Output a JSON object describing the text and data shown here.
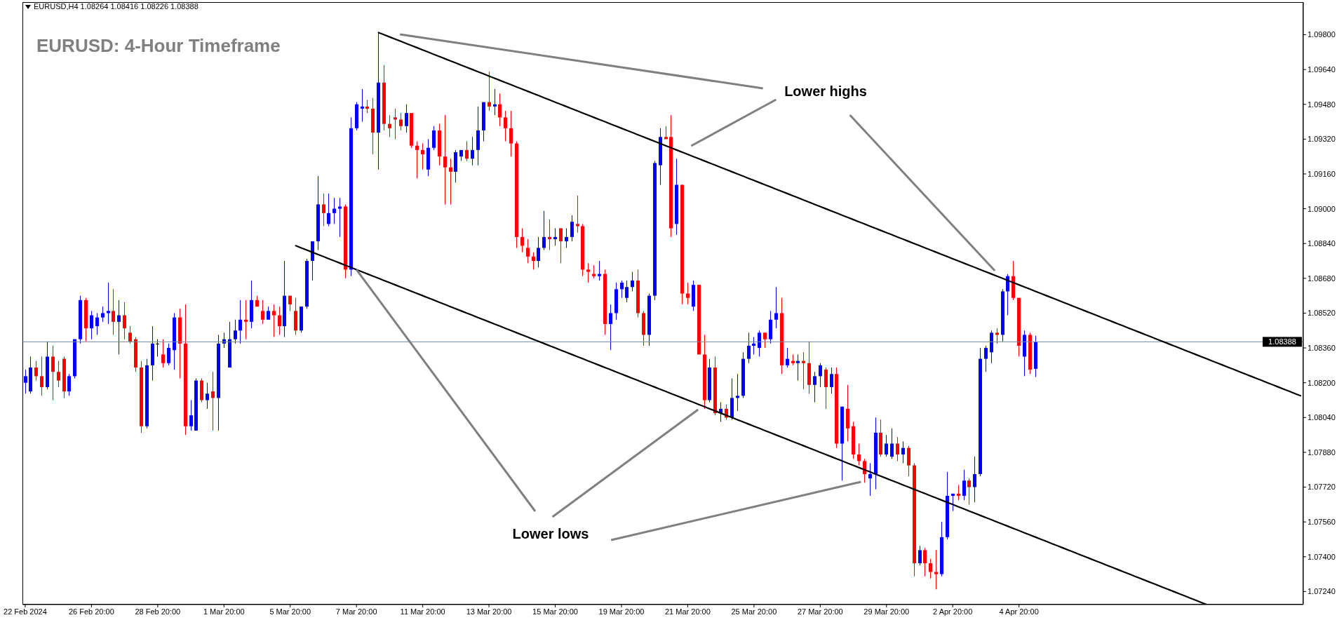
{
  "chart_data": {
    "type": "candlestick",
    "title": "EURUSD: 4-Hour Timeframe",
    "annotations": [
      "EURUSD,H4 1.08264 1.08416 1.08226 1.08388",
      "Lower highs",
      {
        "text": "Lower lows",
        "x": "7 Mar 20:00",
        "y": 1.0872
      }
    ],
    "categories": [
      "22 Feb 2024",
      null,
      null,
      null,
      null,
      null,
      null,
      null,
      null,
      null,
      null,
      null,
      "26 Feb 20:00",
      null,
      null,
      null,
      null,
      null,
      null,
      null,
      null,
      null,
      null,
      null,
      "28 Feb 20:00",
      null,
      null,
      null,
      null,
      null,
      null,
      null,
      null,
      null,
      null,
      null,
      "1 Mar 20:00",
      null,
      null,
      null,
      null,
      null,
      null,
      null,
      null,
      null,
      null,
      null,
      "5 Mar 20:00",
      null,
      null,
      null,
      null,
      null,
      null,
      null,
      null,
      null,
      null,
      null,
      "7 Mar 20:00",
      null,
      null,
      null,
      null,
      null,
      null,
      null,
      null,
      null,
      null,
      null,
      "11 Mar 20:00",
      null,
      null,
      null,
      null,
      null,
      null,
      null,
      null,
      null,
      null,
      null,
      "13 Mar 20:00",
      null,
      null,
      null,
      null,
      null,
      null,
      null,
      null,
      null,
      null,
      null,
      "15 Mar 20:00",
      null,
      null,
      null,
      null,
      null,
      null,
      null,
      null,
      null,
      null,
      null,
      "19 Mar 20:00",
      null,
      null,
      null,
      null,
      null,
      null,
      null,
      null,
      null,
      null,
      null,
      "21 Mar 20:00",
      null,
      null,
      null,
      null,
      null,
      null,
      null,
      null,
      null,
      null,
      null,
      "25 Mar 20:00",
      null,
      null,
      null,
      null,
      null,
      null,
      null,
      null,
      null,
      null,
      null,
      "27 Mar 20:00",
      null,
      null,
      null,
      null,
      null,
      null,
      null,
      null,
      null,
      null,
      null,
      "29 Mar 20:00",
      null,
      null,
      null,
      null,
      null,
      null,
      null,
      null,
      null,
      null,
      null,
      "2 Apr 20:00",
      null,
      null,
      null,
      null,
      null,
      null,
      null,
      null,
      null,
      null,
      null,
      "4 Apr 20:00",
      null,
      null,
      null,
      null,
      null,
      null,
      null,
      null,
      null,
      null,
      null,
      null,
      null,
      null,
      null,
      null,
      null,
      null,
      null,
      null,
      null,
      null,
      null,
      null,
      null,
      null,
      null,
      null,
      null,
      null,
      null,
      null,
      null,
      null,
      null,
      null,
      null,
      null,
      null,
      null,
      null,
      null,
      null,
      null,
      null,
      null,
      null,
      null,
      null,
      null,
      null
    ],
    "ohlc": [
      [
        1.082,
        1.0826,
        1.0815,
        1.0823
      ],
      [
        1.0816,
        1.0832,
        1.0815,
        1.0827
      ],
      [
        1.0827,
        1.083,
        1.0821,
        1.0823
      ],
      [
        1.0823,
        1.0832,
        1.0814,
        1.0818
      ],
      [
        1.0818,
        1.0839,
        1.0817,
        1.0832
      ],
      [
        1.0832,
        1.0837,
        1.0812,
        1.0825
      ],
      [
        1.0825,
        1.083,
        1.0818,
        1.0821
      ],
      [
        1.0831,
        1.0832,
        1.0813,
        1.0816
      ],
      [
        1.0816,
        1.0824,
        1.0814,
        1.0823
      ],
      [
        1.0823,
        1.084,
        1.0822,
        1.084
      ],
      [
        1.084,
        1.086,
        1.0838,
        1.0858
      ],
      [
        1.0858,
        1.0859,
        1.0839,
        1.0845
      ],
      [
        1.0845,
        1.0853,
        1.084,
        1.0851
      ],
      [
        1.0846,
        1.0852,
        1.0842,
        1.085
      ],
      [
        1.085,
        1.0855,
        1.0848,
        1.0852
      ],
      [
        1.0852,
        1.0866,
        1.0847,
        1.0853
      ],
      [
        1.0853,
        1.0863,
        1.0842,
        1.0848
      ],
      [
        1.0848,
        1.0858,
        1.0833,
        1.0851
      ],
      [
        1.0851,
        1.0857,
        1.084,
        1.0845
      ],
      [
        1.0843,
        1.0846,
        1.0838,
        1.0839
      ],
      [
        1.084,
        1.0841,
        1.0825,
        1.0827
      ],
      [
        1.0827,
        1.083,
        1.0797,
        1.08
      ],
      [
        1.08,
        1.0831,
        1.0799,
        1.0828
      ],
      [
        1.0828,
        1.0846,
        1.0821,
        1.0838
      ],
      [
        1.0838,
        1.084,
        1.0832,
        1.0838
      ],
      [
        1.0833,
        1.084,
        1.0827,
        1.0829
      ],
      [
        1.0829,
        1.0838,
        1.0828,
        1.0836
      ],
      [
        1.0835,
        1.0852,
        1.0826,
        1.085
      ],
      [
        1.085,
        1.0854,
        1.0822,
        1.0838
      ],
      [
        1.0838,
        1.0856,
        1.0796,
        1.08
      ],
      [
        1.08,
        1.0812,
        1.0798,
        1.0805
      ],
      [
        1.0798,
        1.0822,
        1.0798,
        1.0821
      ],
      [
        1.0821,
        1.0822,
        1.0811,
        1.0812
      ],
      [
        1.0812,
        1.082,
        1.0808,
        1.0815
      ],
      [
        1.0816,
        1.0825,
        1.0798,
        1.0813
      ],
      [
        1.0813,
        1.0842,
        1.0798,
        1.0838
      ],
      [
        1.0838,
        1.0843,
        1.0836,
        1.084
      ],
      [
        1.0827,
        1.0848,
        1.0827,
        1.084
      ],
      [
        1.084,
        1.0849,
        1.0838,
        1.0844
      ],
      [
        1.0844,
        1.0858,
        1.0838,
        1.0849
      ],
      [
        1.0849,
        1.0858,
        1.084,
        1.0848
      ],
      [
        1.0848,
        1.0867,
        1.0845,
        1.0858
      ],
      [
        1.0858,
        1.086,
        1.0855,
        1.0855
      ],
      [
        1.0853,
        1.0858,
        1.0847,
        1.0849
      ],
      [
        1.0849,
        1.0855,
        1.0849,
        1.0853
      ],
      [
        1.0853,
        1.0856,
        1.0841,
        1.0851
      ],
      [
        1.0851,
        1.0855,
        1.0842,
        1.0846
      ],
      [
        1.0846,
        1.0876,
        1.0841,
        1.086
      ],
      [
        1.086,
        1.086,
        1.0853,
        1.0856
      ],
      [
        1.0853,
        1.0859,
        1.0842,
        1.0844
      ],
      [
        1.0844,
        1.0855,
        1.0843,
        1.0855
      ],
      [
        1.0855,
        1.0877,
        1.0854,
        1.0876
      ],
      [
        1.0876,
        1.0885,
        1.0867,
        1.0885
      ],
      [
        1.0885,
        1.0915,
        1.0881,
        1.0902
      ],
      [
        1.0902,
        1.0907,
        1.0892,
        1.0898
      ],
      [
        1.0893,
        1.0907,
        1.0892,
        1.0898
      ],
      [
        1.0898,
        1.0905,
        1.0893,
        1.09
      ],
      [
        1.09,
        1.0905,
        1.0887,
        1.0901
      ],
      [
        1.0901,
        1.0902,
        1.0868,
        1.0872
      ],
      [
        1.0872,
        1.0942,
        1.0869,
        1.0937
      ],
      [
        1.0937,
        1.0949,
        1.0936,
        1.0948
      ],
      [
        1.0946,
        1.0955,
        1.094,
        1.0947
      ],
      [
        1.0947,
        1.095,
        1.0944,
        1.0946
      ],
      [
        1.0946,
        1.0951,
        1.0925,
        1.0935
      ],
      [
        1.0935,
        1.0981,
        1.0918,
        1.0958
      ],
      [
        1.0958,
        1.0966,
        1.0936,
        1.0939
      ],
      [
        1.0939,
        1.0943,
        1.0933,
        1.0937
      ],
      [
        1.0942,
        1.0946,
        1.0932,
        1.0941
      ],
      [
        1.0941,
        1.0944,
        1.0936,
        1.0938
      ],
      [
        1.0938,
        1.0948,
        1.0935,
        1.0944
      ],
      [
        1.0944,
        1.0944,
        1.0928,
        1.0929
      ],
      [
        1.0929,
        1.0931,
        1.0914,
        1.0927
      ],
      [
        1.0927,
        1.093,
        1.0918,
        1.0925
      ],
      [
        1.0918,
        1.0932,
        1.0915,
        1.0928
      ],
      [
        1.0928,
        1.0938,
        1.0927,
        1.0936
      ],
      [
        1.0936,
        1.0939,
        1.092,
        1.0924
      ],
      [
        1.0924,
        1.0943,
        1.0902,
        1.0919
      ],
      [
        1.0919,
        1.0923,
        1.0902,
        1.0917
      ],
      [
        1.0917,
        1.0927,
        1.0912,
        1.0926
      ],
      [
        1.0924,
        1.0927,
        1.0922,
        1.0927
      ],
      [
        1.0927,
        1.0931,
        1.0922,
        1.0923
      ],
      [
        1.0923,
        1.0933,
        1.092,
        1.0927
      ],
      [
        1.0927,
        1.0947,
        1.092,
        1.0936
      ],
      [
        1.0936,
        1.0949,
        1.0931,
        1.0949
      ],
      [
        1.0949,
        1.0963,
        1.0945,
        1.0947
      ],
      [
        1.0947,
        1.0955,
        1.0943,
        1.0948
      ],
      [
        1.0948,
        1.0953,
        1.0938,
        1.0942
      ],
      [
        1.0942,
        1.0945,
        1.0931,
        1.0937
      ],
      [
        1.0937,
        1.0945,
        1.0924,
        1.093
      ],
      [
        1.093,
        1.0931,
        1.0882,
        1.0887
      ],
      [
        1.0887,
        1.0891,
        1.088,
        1.0883
      ],
      [
        1.0882,
        1.0886,
        1.0875,
        1.0878
      ],
      [
        1.0878,
        1.088,
        1.0872,
        1.0876
      ],
      [
        1.0876,
        1.0887,
        1.0873,
        1.0882
      ],
      [
        1.0882,
        1.0899,
        1.0881,
        1.0887
      ],
      [
        1.0887,
        1.0895,
        1.0881,
        1.0886
      ],
      [
        1.0886,
        1.0891,
        1.0883,
        1.0887
      ],
      [
        1.0891,
        1.0891,
        1.0875,
        1.0885
      ],
      [
        1.0885,
        1.0891,
        1.0882,
        1.0887
      ],
      [
        1.0887,
        1.0897,
        1.0885,
        1.0894
      ],
      [
        1.0893,
        1.0906,
        1.0889,
        1.0892
      ],
      [
        1.0892,
        1.0893,
        1.0869,
        1.0872
      ],
      [
        1.0872,
        1.0875,
        1.0866,
        1.0871
      ],
      [
        1.087,
        1.0874,
        1.0868,
        1.0869
      ],
      [
        1.0869,
        1.0876,
        1.0867,
        1.087
      ],
      [
        1.087,
        1.0872,
        1.0842,
        1.0847
      ],
      [
        1.0847,
        1.0856,
        1.0835,
        1.0852
      ],
      [
        1.0852,
        1.0866,
        1.0849,
        1.0863
      ],
      [
        1.0863,
        1.0867,
        1.0859,
        1.0866
      ],
      [
        1.0859,
        1.0867,
        1.0857,
        1.0864
      ],
      [
        1.0864,
        1.0871,
        1.0862,
        1.0867
      ],
      [
        1.0867,
        1.0872,
        1.085,
        1.0852
      ],
      [
        1.0852,
        1.0853,
        1.0837,
        1.0842
      ],
      [
        1.0842,
        1.0861,
        1.0837,
        1.086
      ],
      [
        1.086,
        1.0922,
        1.0858,
        1.0921
      ],
      [
        1.092,
        1.0937,
        1.0911,
        1.0933
      ],
      [
        1.0933,
        1.0938,
        1.0932,
        1.0932
      ],
      [
        1.0933,
        1.0943,
        1.0887,
        1.0891
      ],
      [
        1.0893,
        1.0923,
        1.0888,
        1.0911
      ],
      [
        1.0911,
        1.0911,
        1.0856,
        1.0861
      ],
      [
        1.0861,
        1.0866,
        1.0856,
        1.0859
      ],
      [
        1.0855,
        1.0867,
        1.0853,
        1.0865
      ],
      [
        1.0865,
        1.0865,
        1.0833,
        1.0833
      ],
      [
        1.0833,
        1.0842,
        1.0808,
        1.0812
      ],
      [
        1.0812,
        1.0831,
        1.0811,
        1.0827
      ],
      [
        1.0827,
        1.0832,
        1.0805,
        1.0806
      ],
      [
        1.0806,
        1.0811,
        1.0802,
        1.0808
      ],
      [
        1.0808,
        1.081,
        1.0803,
        1.0804
      ],
      [
        1.0804,
        1.0822,
        1.0803,
        1.0813
      ],
      [
        1.0813,
        1.0824,
        1.0807,
        1.0814
      ],
      [
        1.0814,
        1.0834,
        1.0813,
        1.0831
      ],
      [
        1.0831,
        1.0843,
        1.0829,
        1.0837
      ],
      [
        1.0837,
        1.0841,
        1.0833,
        1.0838
      ],
      [
        1.0836,
        1.0844,
        1.0832,
        1.0843
      ],
      [
        1.0843,
        1.0843,
        1.0836,
        1.084
      ],
      [
        1.084,
        1.0853,
        1.0838,
        1.0849
      ],
      [
        1.0849,
        1.0864,
        1.0845,
        1.0852
      ],
      [
        1.0852,
        1.0859,
        1.0824,
        1.0828
      ],
      [
        1.0828,
        1.0836,
        1.0827,
        1.0831
      ],
      [
        1.083,
        1.0833,
        1.0828,
        1.0829
      ],
      [
        1.0829,
        1.0833,
        1.0821,
        1.083
      ],
      [
        1.083,
        1.0834,
        1.0817,
        1.0829
      ],
      [
        1.0829,
        1.0839,
        1.0815,
        1.0819
      ],
      [
        1.0819,
        1.0825,
        1.0811,
        1.0823
      ],
      [
        1.0823,
        1.0829,
        1.0818,
        1.0828
      ],
      [
        1.0826,
        1.0827,
        1.0808,
        1.0818
      ],
      [
        1.0818,
        1.0827,
        1.0815,
        1.0824
      ],
      [
        1.0824,
        1.0827,
        1.079,
        1.0792
      ],
      [
        1.0792,
        1.0809,
        1.0775,
        1.0809
      ],
      [
        1.0808,
        1.0819,
        1.0793,
        1.0799
      ],
      [
        1.08,
        1.0802,
        1.0785,
        1.0787
      ],
      [
        1.0787,
        1.0792,
        1.0782,
        1.0784
      ],
      [
        1.0784,
        1.0785,
        1.0774,
        1.0778
      ],
      [
        1.0776,
        1.0783,
        1.0768,
        1.0778
      ],
      [
        1.0778,
        1.0804,
        1.0771,
        1.0797
      ],
      [
        1.0797,
        1.0803,
        1.0786,
        1.0787
      ],
      [
        1.0787,
        1.0796,
        1.0786,
        1.0792
      ],
      [
        1.0786,
        1.0799,
        1.0785,
        1.0792
      ],
      [
        1.0792,
        1.0795,
        1.0784,
        1.0787
      ],
      [
        1.0787,
        1.0793,
        1.0783,
        1.079
      ],
      [
        1.079,
        1.0791,
        1.0777,
        1.0782
      ],
      [
        1.0782,
        1.0783,
        1.0731,
        1.0737
      ],
      [
        1.0737,
        1.0745,
        1.0736,
        1.0743
      ],
      [
        1.0743,
        1.0744,
        1.0731,
        1.0737
      ],
      [
        1.0737,
        1.0739,
        1.073,
        1.0733
      ],
      [
        1.0733,
        1.0743,
        1.0725,
        1.0732
      ],
      [
        1.0732,
        1.0756,
        1.0731,
        1.0749
      ],
      [
        1.0749,
        1.0779,
        1.0748,
        1.0768
      ],
      [
        1.0768,
        1.0769,
        1.0761,
        1.0769
      ],
      [
        1.0769,
        1.0773,
        1.0766,
        1.0768
      ],
      [
        1.0768,
        1.078,
        1.0766,
        1.0775
      ],
      [
        1.0775,
        1.0776,
        1.0764,
        1.0772
      ],
      [
        1.0772,
        1.0786,
        1.0765,
        1.0778
      ],
      [
        1.0778,
        1.0836,
        1.0777,
        1.0831
      ],
      [
        1.0831,
        1.0837,
        1.0825,
        1.0836
      ],
      [
        1.0834,
        1.0844,
        1.0829,
        1.0843
      ],
      [
        1.0843,
        1.0845,
        1.0838,
        1.0842
      ],
      [
        1.0842,
        1.0863,
        1.0839,
        1.0862
      ],
      [
        1.0862,
        1.087,
        1.0851,
        1.0869
      ],
      [
        1.0869,
        1.0876,
        1.0858,
        1.0859
      ],
      [
        1.0859,
        1.0859,
        1.0832,
        1.0837
      ],
      [
        1.0832,
        1.0844,
        1.0823,
        1.0842
      ],
      [
        1.0842,
        1.0843,
        1.0824,
        1.0826
      ],
      [
        1.08264,
        1.08416,
        1.08226,
        1.08388
      ],
      null,
      null,
      null,
      null,
      null,
      null,
      null,
      null,
      null,
      null,
      null,
      null,
      null,
      null,
      null,
      null,
      null,
      null,
      null,
      null,
      null,
      null,
      null,
      null,
      null,
      null,
      null,
      null,
      null,
      null,
      null,
      null,
      null,
      null,
      null,
      null,
      null,
      null,
      null,
      null,
      null,
      null,
      null,
      null,
      null,
      null,
      null,
      null
    ],
    "colors": [
      "#0000ff",
      "#0000ff",
      "#ff0000",
      "#ff0000",
      "#0000ff",
      "#ff0000",
      "#ff0000",
      "#ff0000",
      "#0000ff",
      "#0000ff",
      "#0000ff",
      "#ff0000",
      "#0000ff",
      "#0000ff",
      "#0000ff",
      "#0000ff",
      "#ff0000",
      "#0000ff",
      "#ff0000",
      "#ff0000",
      "#ff0000",
      "#ff0000",
      "#0000ff",
      "#0000ff",
      "#000000",
      "#ff0000",
      "#0000ff",
      "#0000ff",
      "#ff0000",
      "#ff0000",
      "#0000ff",
      "#0000ff",
      "#ff0000",
      "#0000ff",
      "#ff0000",
      "#0000ff",
      "#0000ff",
      "#0000ff",
      "#0000ff",
      "#0000ff",
      "#ff0000",
      "#0000ff",
      "#ff0000",
      "#ff0000",
      "#0000ff",
      "#ff0000",
      "#ff0000",
      "#0000ff",
      "#ff0000",
      "#ff0000",
      "#0000ff",
      "#0000ff",
      "#0000ff",
      "#0000ff",
      "#ff0000",
      "#0000ff",
      "#0000ff",
      "#0000ff",
      "#ff0000",
      "#0000ff",
      "#0000ff",
      "#0000ff",
      "#ff0000",
      "#ff0000",
      "#0000ff",
      "#ff0000",
      "#ff0000",
      "#ff0000",
      "#ff0000",
      "#0000ff",
      "#ff0000",
      "#ff0000",
      "#ff0000",
      "#0000ff",
      "#0000ff",
      "#ff0000",
      "#ff0000",
      "#ff0000",
      "#0000ff",
      "#0000ff",
      "#ff0000",
      "#0000ff",
      "#0000ff",
      "#0000ff",
      "#ff0000",
      "#0000ff",
      "#ff0000",
      "#ff0000",
      "#ff0000",
      "#ff0000",
      "#ff0000",
      "#ff0000",
      "#ff0000",
      "#0000ff",
      "#0000ff",
      "#ff0000",
      "#0000ff",
      "#ff0000",
      "#0000ff",
      "#0000ff",
      "#ff0000",
      "#ff0000",
      "#ff0000",
      "#ff0000",
      "#0000ff",
      "#ff0000",
      "#0000ff",
      "#0000ff",
      "#0000ff",
      "#0000ff",
      "#0000ff",
      "#ff0000",
      "#ff0000",
      "#0000ff",
      "#0000ff",
      "#0000ff",
      "#ff0000",
      "#ff0000",
      "#0000ff",
      "#ff0000",
      "#ff0000",
      "#0000ff",
      "#ff0000",
      "#ff0000",
      "#0000ff",
      "#ff0000",
      "#0000ff",
      "#ff0000",
      "#0000ff",
      "#0000ff",
      "#0000ff",
      "#0000ff",
      "#0000ff",
      "#0000ff",
      "#ff0000",
      "#0000ff",
      "#0000ff",
      "#ff0000",
      "#0000ff",
      "#ff0000",
      "#0000ff",
      "#ff0000",
      "#ff0000",
      "#0000ff",
      "#0000ff",
      "#ff0000",
      "#0000ff",
      "#ff0000",
      "#0000ff",
      "#ff0000",
      "#ff0000",
      "#ff0000",
      "#ff0000",
      "#0000ff",
      "#0000ff",
      "#ff0000",
      "#0000ff",
      "#0000ff",
      "#ff0000",
      "#0000ff",
      "#ff0000",
      "#ff0000",
      "#0000ff",
      "#ff0000",
      "#ff0000",
      "#ff0000",
      "#0000ff",
      "#0000ff",
      "#0000ff",
      "#ff0000",
      "#0000ff",
      "#ff0000",
      "#0000ff",
      "#0000ff",
      "#0000ff",
      "#0000ff",
      "#ff0000",
      "#0000ff",
      "#0000ff",
      "#ff0000",
      "#ff0000",
      "#0000ff",
      "#ff0000",
      "#0000ff",
      null,
      null,
      null,
      null,
      null,
      null,
      null,
      null,
      null,
      null,
      null,
      null,
      null,
      null,
      null,
      null,
      null,
      null,
      null,
      null,
      null,
      null,
      null,
      null,
      null,
      null,
      null,
      null,
      null,
      null,
      null,
      null,
      null,
      null,
      null,
      null,
      null,
      null,
      null,
      null,
      null,
      null,
      null,
      null,
      null,
      null,
      null,
      null
    ],
    "series": [
      {
        "type": "line",
        "color": "#000000",
        "values": [
          null,
          null,
          null,
          null,
          null,
          null,
          null,
          null,
          null,
          null,
          null,
          null,
          null,
          null,
          null,
          null,
          null,
          null,
          null,
          null,
          null,
          null,
          null,
          null,
          null,
          null,
          null,
          null,
          null,
          null,
          null,
          null,
          null,
          null,
          null,
          null,
          null,
          null,
          null,
          null,
          null,
          null,
          null,
          null,
          null,
          null,
          null,
          null,
          null,
          null,
          null,
          null,
          null,
          null,
          null,
          null,
          null,
          null,
          null,
          null,
          null,
          null,
          null,
          null,
          1.0981,
          1.098,
          1.0979,
          1.0978,
          1.0977,
          1.0976,
          1.0975,
          1.0974,
          1.0973,
          1.0972,
          1.0971,
          1.097,
          1.0969,
          1.0968,
          1.0967,
          1.0966,
          1.0965,
          1.0964,
          1.0963,
          1.0962,
          1.0961,
          1.096,
          1.0959,
          1.0958,
          1.0957,
          1.0956,
          1.0955,
          1.0954,
          1.0953,
          1.0952,
          1.0951,
          1.095,
          1.0949,
          1.0948,
          1.0947,
          1.0946,
          1.0945,
          1.0944,
          1.0943,
          1.0942,
          1.0941,
          1.094,
          1.0939,
          1.0938,
          1.0937,
          1.0936,
          1.0935,
          1.0934,
          1.0933,
          1.0932,
          1.0931,
          1.093,
          1.0929,
          1.0928,
          1.0927,
          1.0926,
          1.0925,
          1.0924,
          1.0923,
          1.0922,
          1.0921,
          1.092,
          1.0919,
          1.0918,
          1.0917,
          1.0916,
          1.0915,
          1.0914,
          1.0913,
          1.0912,
          1.0911,
          1.091,
          1.0909,
          1.0908,
          1.0907,
          1.0906,
          1.0905,
          1.0904,
          1.0903,
          1.0902,
          1.0901,
          1.09,
          1.0899,
          1.0898,
          1.0897,
          1.0896,
          1.0895,
          1.0894,
          1.0893,
          1.0892,
          1.0891,
          1.089,
          1.0889,
          1.0888,
          1.0887,
          1.0886,
          1.0885,
          1.0884,
          1.0883,
          1.0882,
          1.0881,
          1.088,
          1.0879,
          1.0878,
          1.0877,
          1.0876,
          1.0875,
          1.0874,
          1.0873,
          1.0872,
          1.0871,
          1.087,
          1.0869,
          1.0868,
          1.0867,
          1.0866,
          1.0865,
          1.0864,
          1.0863,
          1.0862,
          1.0861,
          1.086,
          1.0859,
          1.0858,
          1.0857,
          1.0856,
          1.0855,
          1.0854,
          1.0853,
          1.0852,
          1.0851,
          1.085,
          1.0849,
          1.0848,
          1.0847,
          1.0846,
          1.0845,
          1.0844,
          1.0843,
          1.0842,
          1.0841,
          1.084,
          1.0839,
          1.0838,
          1.0837,
          1.0836,
          1.0835,
          1.0834,
          1.0833,
          1.0832,
          1.0831,
          1.083,
          1.0829,
          1.0828,
          1.0827,
          1.0826,
          1.0825,
          1.0824,
          1.0823,
          1.0822,
          1.0821,
          1.082,
          1.0819,
          1.0818,
          1.0817,
          1.0816,
          1.0815,
          1.0814
        ]
      },
      {
        "type": "line",
        "color": "#000000",
        "values": [
          null,
          null,
          null,
          null,
          null,
          null,
          null,
          null,
          null,
          null,
          null,
          null,
          null,
          null,
          null,
          null,
          null,
          null,
          null,
          null,
          null,
          null,
          null,
          null,
          null,
          null,
          null,
          null,
          null,
          null,
          null,
          null,
          null,
          null,
          null,
          null,
          null,
          null,
          null,
          null,
          null,
          null,
          null,
          null,
          null,
          null,
          null,
          null,
          null,
          1.0883,
          1.0882,
          1.0881,
          1.088,
          1.0879,
          1.0878,
          1.0877,
          1.0876,
          1.0875,
          1.0874,
          1.0873,
          1.0872,
          1.0871,
          1.087,
          1.0869,
          1.0868,
          1.0867,
          1.0866,
          1.0865,
          1.0864,
          1.0863,
          1.0862,
          1.0861,
          1.086,
          1.0859,
          1.0858,
          1.0857,
          1.0856,
          1.0855,
          1.0854,
          1.0853,
          1.0852,
          1.0851,
          1.085,
          1.0849,
          1.0848,
          1.0847,
          1.0846,
          1.0845,
          1.0844,
          1.0843,
          1.0842,
          1.0841,
          1.084,
          1.0839,
          1.0838,
          1.0837,
          1.0836,
          1.0835,
          1.0834,
          1.0833,
          1.0832,
          1.0831,
          1.083,
          1.0829,
          1.0828,
          1.0827,
          1.0826,
          1.0825,
          1.0824,
          1.0823,
          1.0822,
          1.0821,
          1.082,
          1.0819,
          1.0818,
          1.0817,
          1.0816,
          1.0815,
          1.0814,
          1.0813,
          1.0812,
          1.0811,
          1.081,
          1.0809,
          1.0808,
          1.0807,
          1.0806,
          1.0805,
          1.0804,
          1.0803,
          1.0802,
          1.0801,
          1.08,
          1.0799,
          1.0798,
          1.0797,
          1.0796,
          1.0795,
          1.0794,
          1.0793,
          1.0792,
          1.0791,
          1.079,
          1.0789,
          1.0788,
          1.0787,
          1.0786,
          1.0785,
          1.0784,
          1.0783,
          1.0782,
          1.0781,
          1.078,
          1.0779,
          1.0778,
          1.0777,
          1.0776,
          1.0775,
          1.0774,
          1.0773,
          1.0772,
          1.0771,
          1.077,
          1.0769,
          1.0768,
          1.0767,
          1.0766,
          1.0765,
          1.0764,
          1.0763,
          1.0762,
          1.0761,
          1.076,
          1.0759,
          1.0758,
          1.0757,
          1.0756,
          1.0755,
          1.0754,
          1.0753,
          1.0752,
          1.0751,
          1.075,
          1.0749,
          1.0748,
          1.0747,
          1.0746,
          1.0745,
          1.0744,
          1.0743,
          1.0742,
          1.0741,
          1.074,
          1.0739,
          1.0738,
          1.0737,
          1.0736,
          1.0735,
          1.0734,
          1.0733,
          1.0732,
          1.0731,
          1.073,
          1.0729,
          1.0728,
          1.0727,
          1.0726,
          1.0725,
          1.0724,
          1.0723,
          1.0722,
          1.0721,
          1.072,
          1.0719,
          1.0718,
          null,
          null,
          null,
          null,
          null,
          null,
          null,
          null,
          null,
          null,
          null,
          null,
          null,
          null,
          null,
          null,
          null
        ]
      }
    ],
    "ref_lines": [
      {
        "axis": "y",
        "value": 1.08388,
        "label": "1.08388",
        "color": "#778899"
      }
    ],
    "ylim": [
      1.0718,
      1.0995
    ],
    "yticks": [
      {
        "value": 1.0724,
        "label": "1.07240"
      },
      {
        "value": 1.074,
        "label": "1.07400"
      },
      {
        "value": 1.0756,
        "label": "1.07560"
      },
      {
        "value": 1.0772,
        "label": "1.07720"
      },
      {
        "value": 1.0788,
        "label": "1.07880"
      },
      {
        "value": 1.0804,
        "label": "1.08040"
      },
      {
        "value": 1.082,
        "label": "1.08200"
      },
      {
        "value": 1.0836,
        "label": "1.08360"
      },
      {
        "value": 1.0852,
        "label": "1.08520"
      },
      {
        "value": 1.0868,
        "label": "1.08680"
      },
      {
        "value": 1.0884,
        "label": "1.08840"
      },
      {
        "value": 1.09,
        "label": "1.09000"
      },
      {
        "value": 1.0916,
        "label": "1.09160"
      },
      {
        "value": 1.0932,
        "label": "1.09320"
      },
      {
        "value": 1.0948,
        "label": "1.09480"
      },
      {
        "value": 1.0964,
        "label": "1.09640"
      },
      {
        "value": 1.098,
        "label": "1.09800"
      }
    ]
  }
}
